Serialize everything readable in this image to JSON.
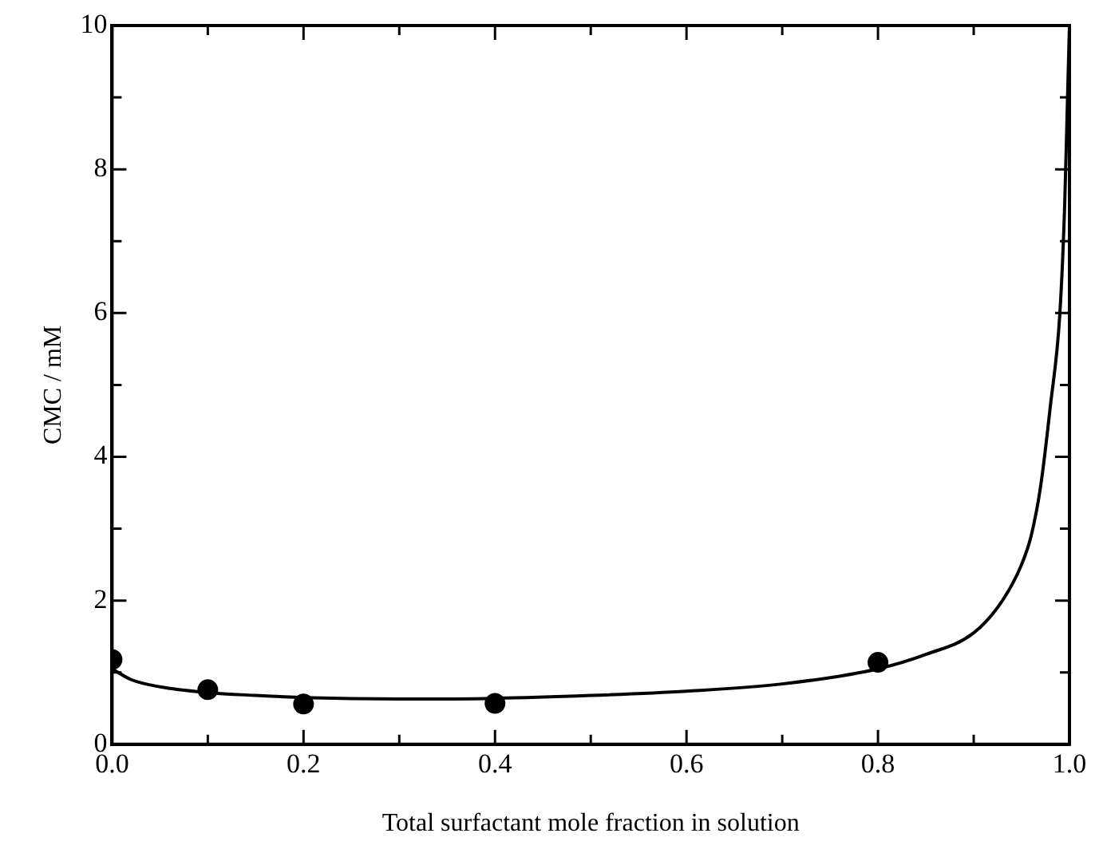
{
  "chart_data": {
    "type": "scatter",
    "xlabel": "Total surfactant mole fraction in solution",
    "ylabel": "CMC / mM",
    "xlim": [
      0,
      1
    ],
    "ylim": [
      0,
      10
    ],
    "xticks": [
      {
        "value": 0,
        "label": "0.0"
      },
      {
        "value": 0.1,
        "label": null
      },
      {
        "value": 0.2,
        "label": "0.2"
      },
      {
        "value": 0.3,
        "label": null
      },
      {
        "value": 0.4,
        "label": "0.4"
      },
      {
        "value": 0.5,
        "label": null
      },
      {
        "value": 0.6,
        "label": "0.6"
      },
      {
        "value": 0.7,
        "label": null
      },
      {
        "value": 0.8,
        "label": "0.8"
      },
      {
        "value": 0.9,
        "label": null
      },
      {
        "value": 1,
        "label": "1.0"
      }
    ],
    "yticks": [
      0,
      {
        "value": 1,
        "label": null
      },
      2,
      {
        "value": 3,
        "label": null
      },
      4,
      {
        "value": 5,
        "label": null
      },
      6,
      {
        "value": 7,
        "label": null
      },
      8,
      {
        "value": 9,
        "label": null
      },
      10
    ],
    "grid": false,
    "legend": false,
    "series": [
      {
        "color": "#000000",
        "marker": "circle",
        "x": [
          0,
          0.1,
          0.2,
          0.4,
          0.8
        ],
        "values": [
          1.18,
          0.76,
          0.56,
          0.57,
          1.14
        ]
      },
      {
        "type": "line",
        "color": "#000000",
        "marker": "none",
        "line_style": "solid",
        "x": [
          0,
          0.02,
          0.05,
          0.1,
          0.15,
          0.2,
          0.3,
          0.4,
          0.5,
          0.6,
          0.7,
          0.8,
          0.85,
          0.9,
          0.93,
          0.95,
          0.96,
          0.97,
          0.98,
          0.99,
          0.995,
          0.998,
          1
        ],
        "values": [
          1.05,
          0.9,
          0.8,
          0.72,
          0.68,
          0.65,
          0.63,
          0.64,
          0.68,
          0.74,
          0.84,
          1.05,
          1.25,
          1.55,
          2.0,
          2.5,
          2.9,
          3.6,
          4.7,
          6.0,
          7.5,
          9.0,
          10
        ]
      }
    ]
  }
}
